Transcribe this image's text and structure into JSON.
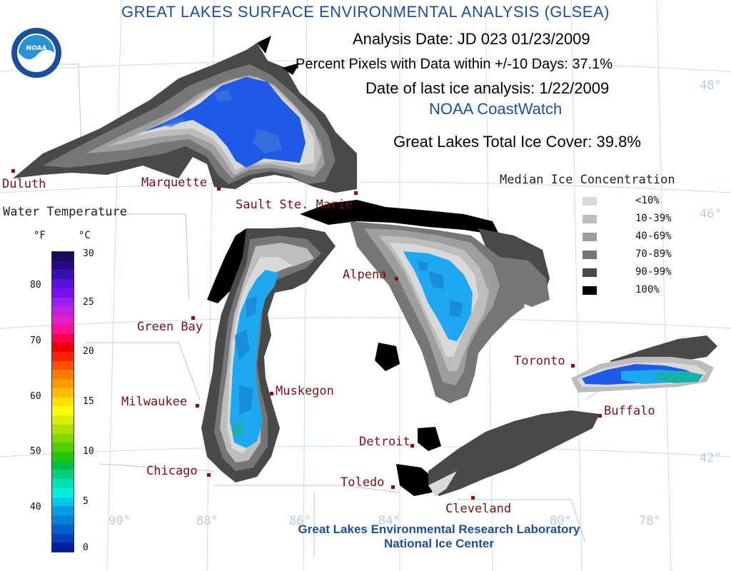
{
  "title": "GREAT LAKES SURFACE ENVIRONMENTAL ANALYSIS (GLSEA)",
  "logo": {
    "text": "NOAA",
    "icon": "noaa-logo-icon",
    "colors": {
      "ring": "#1a4f9c",
      "bird": "#ffffff",
      "sky": "#2a92d2"
    }
  },
  "header": {
    "analysis_date": "Analysis Date:  JD 023 01/23/2009",
    "percent_pixels": "Percent Pixels with Data within +/-10 Days:  37.1%",
    "last_ice": "Date of last ice analysis: 1/22/2009",
    "source": "NOAA CoastWatch",
    "total_ice": "Great Lakes Total Ice Cover:  39.8%"
  },
  "ice_legend": {
    "title": "Median Ice Concentration",
    "items": [
      {
        "label": "<10%",
        "color": "#d9d9d9"
      },
      {
        "label": "10-39%",
        "color": "#bdbdbd"
      },
      {
        "label": "40-69%",
        "color": "#9e9e9e"
      },
      {
        "label": "70-89%",
        "color": "#767676"
      },
      {
        "label": "90-99%",
        "color": "#494949"
      },
      {
        "label": "100%",
        "color": "#000000"
      }
    ]
  },
  "temp_scale": {
    "title": "Water Temperature",
    "unit_f": "°F",
    "unit_c": "°C",
    "f_ticks": [
      "80",
      "70",
      "60",
      "50",
      "40"
    ],
    "c_ticks": [
      "30",
      "25",
      "20",
      "15",
      "10",
      "5",
      "0"
    ],
    "colors": [
      "#1a0a5e",
      "#2a0a8a",
      "#3a10b0",
      "#5a10d8",
      "#7a10f0",
      "#9a20f0",
      "#c020e0",
      "#e020c0",
      "#ff1090",
      "#ff0050",
      "#e80000",
      "#ff2000",
      "#ff5000",
      "#ff7a00",
      "#ff9a00",
      "#ffbf00",
      "#ffe000",
      "#ffff00",
      "#d8f000",
      "#b0e000",
      "#80d800",
      "#50d000",
      "#20c800",
      "#00c040",
      "#00d080",
      "#00e0b0",
      "#00f0e0",
      "#00c8e8",
      "#00a0e0",
      "#0080d8",
      "#0060c8",
      "#0040b8",
      "#0020a0"
    ]
  },
  "cities": [
    {
      "name": "Duluth"
    },
    {
      "name": "Marquette"
    },
    {
      "name": "Sault Ste. Marie"
    },
    {
      "name": "Green Bay"
    },
    {
      "name": "Alpena"
    },
    {
      "name": "Milwaukee"
    },
    {
      "name": "Muskegon"
    },
    {
      "name": "Chicago"
    },
    {
      "name": "Toronto"
    },
    {
      "name": "Buffalo"
    },
    {
      "name": "Detroit"
    },
    {
      "name": "Toledo"
    },
    {
      "name": "Cleveland"
    }
  ],
  "graticule": {
    "latitudes": [
      "48°",
      "46°",
      "42°"
    ],
    "longitudes": [
      "90°",
      "88°",
      "86°",
      "84°",
      "80°",
      "78°"
    ]
  },
  "footer": {
    "line1": "Great Lakes Environmental Research Laboratory",
    "line2": "National Ice Center"
  }
}
